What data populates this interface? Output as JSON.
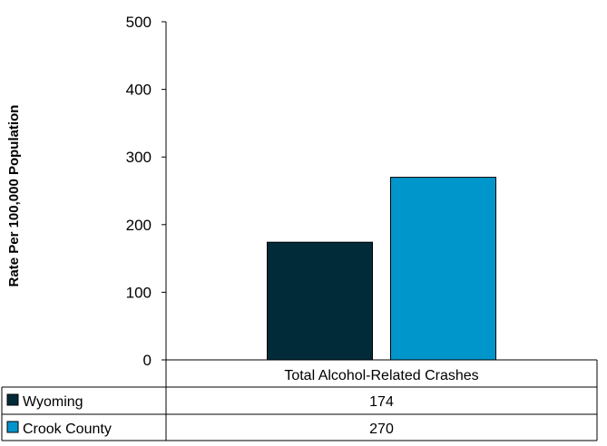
{
  "chart_data": {
    "type": "bar",
    "title": "",
    "xlabel": "",
    "ylabel": "Rate Per 100,000 Population",
    "ylim": [
      0,
      500
    ],
    "yticks": [
      0,
      100,
      200,
      300,
      400,
      500
    ],
    "grid": false,
    "legend": "data-table",
    "categories": [
      "Total Alcohol-Related Crashes"
    ],
    "series": [
      {
        "name": "Wyoming",
        "values": [
          174
        ],
        "color": "#022b3a"
      },
      {
        "name": "Crook County",
        "values": [
          270
        ],
        "color": "#0096cc"
      }
    ]
  }
}
